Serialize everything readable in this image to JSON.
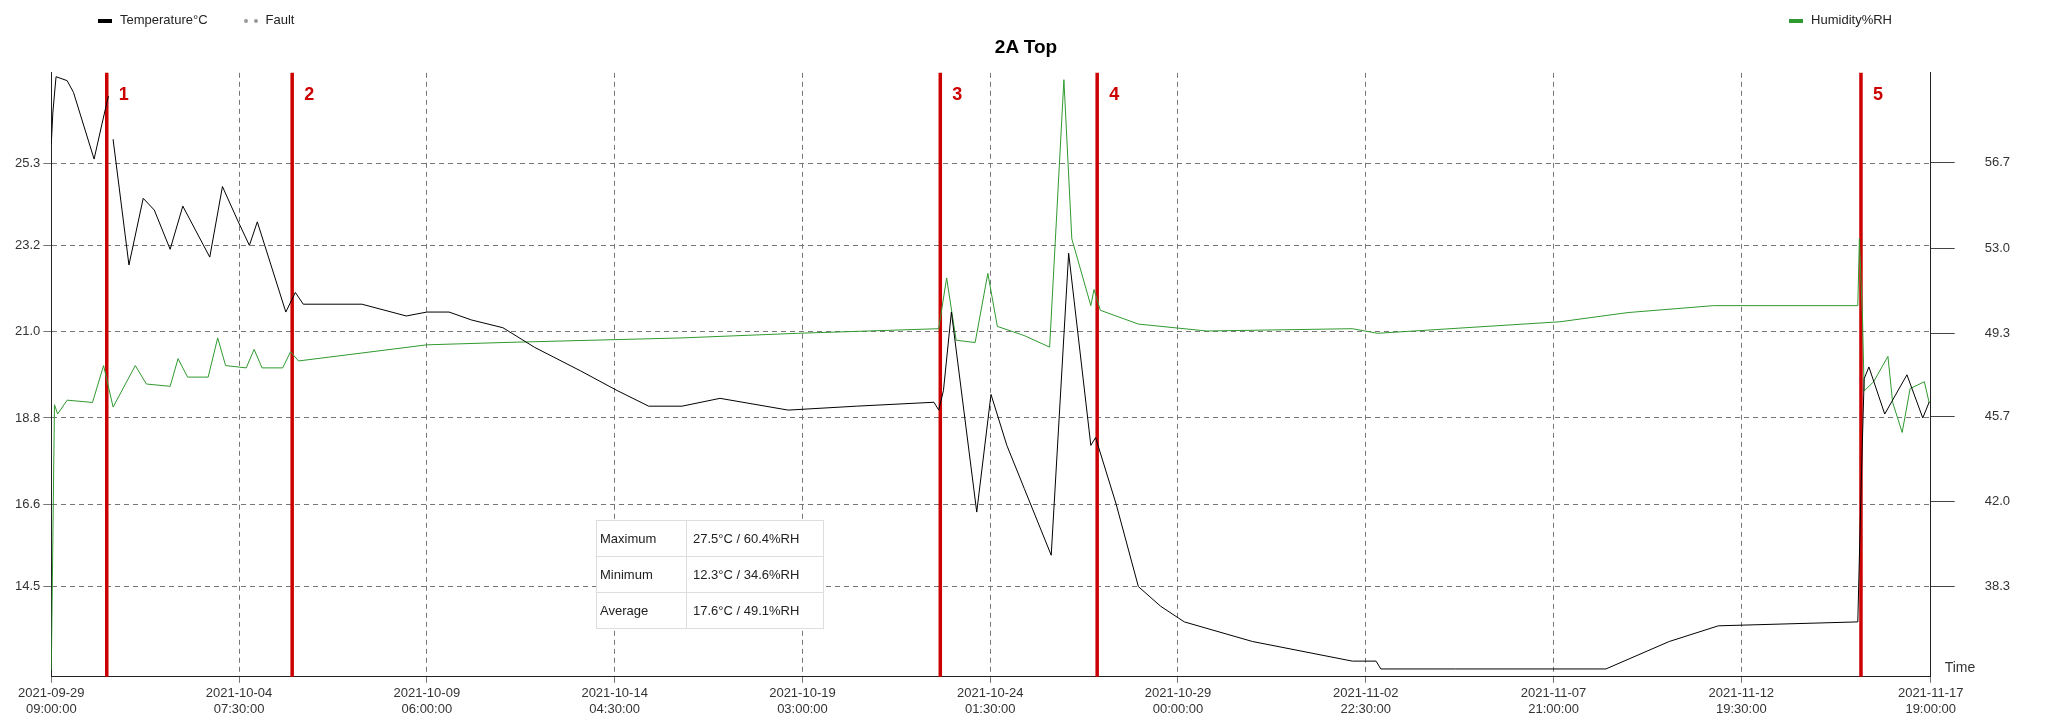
{
  "chart_data": {
    "type": "line",
    "title": "2A Top",
    "xlabel": "Time",
    "legend": "top",
    "grid": true,
    "line_style": "solid",
    "xlim": [
      "2021-09-29T09:00",
      "2021-11-17T19:00"
    ],
    "xticks": [
      {
        "value": "2021-09-29T09:00",
        "label": "2021-09-29\n09:00:00"
      },
      {
        "value": "2021-10-04T07:30",
        "label": "2021-10-04\n07:30:00"
      },
      {
        "value": "2021-10-09T06:00",
        "label": "2021-10-09\n06:00:00"
      },
      {
        "value": "2021-10-14T04:30",
        "label": "2021-10-14\n04:30:00"
      },
      {
        "value": "2021-10-19T03:00",
        "label": "2021-10-19\n03:00:00"
      },
      {
        "value": "2021-10-24T01:30",
        "label": "2021-10-24\n01:30:00"
      },
      {
        "value": "2021-10-29T00:00",
        "label": "2021-10-29\n00:00:00"
      },
      {
        "value": "2021-11-02T22:30",
        "label": "2021-11-02\n22:30:00"
      },
      {
        "value": "2021-11-07T21:00",
        "label": "2021-11-07\n21:00:00"
      },
      {
        "value": "2021-11-12T19:30",
        "label": "2021-11-12\n19:30:00"
      },
      {
        "value": "2021-11-17T19:00",
        "label": "2021-11-17\n19:00:00"
      }
    ],
    "ylim": [
      12.2,
      27.6
    ],
    "yticks": [
      25.3,
      23.2,
      {
        "value": 21,
        "label": "21.0"
      },
      18.8,
      16.6,
      14.5
    ],
    "y2lim": [
      34.4,
      60.6
    ],
    "y2ticks": [
      56.7,
      {
        "value": 53,
        "label": "53.0"
      },
      49.3,
      45.7,
      {
        "value": 42,
        "label": "42.0"
      },
      38.3
    ],
    "ref_lines": [
      {
        "axis": "x",
        "value": "2021-09-30T20:00",
        "label": "1",
        "color": "#cc0000"
      },
      {
        "axis": "x",
        "value": "2021-10-05T17:00",
        "label": "2",
        "color": "#cc0000"
      },
      {
        "axis": "x",
        "value": "2021-10-22T18:00",
        "label": "3",
        "color": "#cc0000"
      },
      {
        "axis": "x",
        "value": "2021-10-26T21:00",
        "label": "4",
        "color": "#cc0000"
      },
      {
        "axis": "x",
        "value": "2021-11-15T23:00",
        "label": "5",
        "color": "#cc0000"
      }
    ],
    "annotations": [
      "Maximum",
      "27.5°C / 60.4%RH",
      "Minimum",
      "12.3°C / 34.6%RH",
      "Average",
      "17.6°C / 49.1%RH"
    ],
    "series": [
      {
        "name": "Temperature°C",
        "color": "#000000",
        "x": [
          "2021-09-29T09:00",
          "2021-09-29T10:00",
          "2021-09-29T12:00",
          "2021-09-29T19:00",
          "2021-09-29T23:00",
          "2021-09-30T12:00",
          "2021-09-30T17:00",
          "2021-09-30T21:00",
          "2021-09-30T23:00",
          "2021-10-01T00:00",
          "2021-10-01T10:00",
          "2021-10-01T19:00",
          "2021-10-02T02:00",
          "2021-10-02T12:00",
          "2021-10-02T20:00",
          "2021-10-03T13:00",
          "2021-10-03T21:00",
          "2021-10-04T07:00",
          "2021-10-04T14:00",
          "2021-10-04T19:00",
          "2021-10-05T13:00",
          "2021-10-05T19:00",
          "2021-10-06T00:00",
          "2021-10-07T13:00",
          "2021-10-08T17:00",
          "2021-10-09T06:00",
          "2021-10-09T20:00",
          "2021-10-10T10:00",
          "2021-10-11T06:00",
          "2021-10-12T02:00",
          "2021-10-13T07:00",
          "2021-10-14T06:00",
          "2021-10-15T02:00",
          "2021-10-15T23:00",
          "2021-10-16T23:00",
          "2021-10-18T18:00",
          "2021-10-20T13:00",
          "2021-10-22T14:00",
          "2021-10-22T17:00",
          "2021-10-22T20:00",
          "2021-10-23T01:00",
          "2021-10-23T17:00",
          "2021-10-24T02:00",
          "2021-10-24T12:00",
          "2021-10-24T23:00",
          "2021-10-25T16:00",
          "2021-10-26T03:00",
          "2021-10-26T17:00",
          "2021-10-26T20:00",
          "2021-10-27T09:00",
          "2021-10-27T23:00",
          "2021-10-28T13:00",
          "2021-10-29T04:00",
          "2021-10-30T23:00",
          "2021-11-02T14:00",
          "2021-11-03T05:00",
          "2021-11-03T08:00",
          "2021-11-05T07:00",
          "2021-11-05T10:00",
          "2021-11-09T06:00",
          "2021-11-10T22:00",
          "2021-11-12T05:00",
          "2021-11-15T21:00",
          "2021-11-15T23:00",
          "2021-11-16T01:00",
          "2021-11-16T04:00",
          "2021-11-16T14:00",
          "2021-11-17T04:00",
          "2021-11-17T14:00",
          "2021-11-17T18:00"
        ],
        "values": [
          25.8,
          26.6,
          27.5,
          27.4,
          27.1,
          25.4,
          26.3,
          27.0,
          null,
          25.9,
          22.7,
          24.4,
          24.1,
          23.1,
          24.2,
          22.9,
          24.7,
          23.8,
          23.2,
          23.8,
          21.5,
          22.0,
          21.7,
          21.7,
          21.4,
          21.5,
          21.5,
          21.3,
          21.1,
          20.6,
          20.0,
          19.5,
          19.1,
          19.1,
          19.3,
          19.0,
          19.1,
          19.2,
          19.0,
          19.5,
          21.5,
          16.4,
          19.4,
          18.1,
          17.0,
          15.3,
          23.0,
          18.1,
          18.3,
          16.6,
          14.5,
          14.0,
          13.6,
          13.1,
          12.6,
          12.6,
          12.4,
          12.4,
          12.4,
          12.4,
          13.1,
          13.5,
          13.6,
          16.9,
          19.8,
          20.1,
          18.9,
          19.9,
          18.8,
          19.2
        ]
      },
      {
        "name": "Fault",
        "color": "#999999",
        "line_style": "dotted"
      },
      {
        "name": "Humidity%RH",
        "color": "#2f9a2f",
        "axis": "y2",
        "x": [
          "2021-09-29T09:00",
          "2021-09-29T11:00",
          "2021-09-29T13:00",
          "2021-09-29T19:00",
          "2021-09-30T11:00",
          "2021-09-30T18:00",
          "2021-10-01T00:00",
          "2021-10-01T14:00",
          "2021-10-01T21:00",
          "2021-10-02T12:00",
          "2021-10-02T17:00",
          "2021-10-02T23:00",
          "2021-10-03T12:00",
          "2021-10-03T18:00",
          "2021-10-03T23:00",
          "2021-10-04T12:00",
          "2021-10-04T17:00",
          "2021-10-04T22:00",
          "2021-10-05T11:00",
          "2021-10-05T16:00",
          "2021-10-05T21:00",
          "2021-10-09T06:00",
          "2021-10-11T06:00",
          "2021-10-15T23:00",
          "2021-10-19T00:00",
          "2021-10-22T17:00",
          "2021-10-22T22:00",
          "2021-10-23T04:00",
          "2021-10-23T16:00",
          "2021-10-24T00:00",
          "2021-10-24T06:00",
          "2021-10-24T23:00",
          "2021-10-25T15:00",
          "2021-10-26T00:00",
          "2021-10-26T05:00",
          "2021-10-26T17:00",
          "2021-10-26T19:00",
          "2021-10-26T23:00",
          "2021-10-27T23:00",
          "2021-10-29T18:00",
          "2021-11-02T14:00",
          "2021-11-03T06:00",
          "2021-11-08T01:00",
          "2021-11-09T20:00",
          "2021-11-12T02:00",
          "2021-11-15T21:00",
          "2021-11-15T22:00",
          "2021-11-16T00:00",
          "2021-11-16T01:00",
          "2021-11-16T07:00",
          "2021-11-16T16:00",
          "2021-11-16T19:00",
          "2021-11-17T01:00",
          "2021-11-17T06:00",
          "2021-11-17T15:00",
          "2021-11-17T18:00"
        ],
        "values": [
          34.7,
          46.2,
          45.8,
          46.4,
          46.3,
          47.9,
          46.1,
          47.9,
          47.1,
          47.0,
          48.2,
          47.4,
          47.4,
          49.1,
          47.9,
          47.8,
          48.6,
          47.8,
          47.8,
          48.5,
          48.1,
          48.8,
          48.9,
          49.1,
          49.3,
          49.5,
          51.7,
          49.0,
          48.9,
          51.9,
          49.6,
          49.2,
          48.7,
          60.3,
          53.4,
          50.5,
          51.2,
          50.3,
          49.7,
          49.4,
          49.5,
          49.3,
          49.8,
          50.2,
          50.5,
          50.5,
          53.4,
          49.9,
          46.8,
          47.2,
          48.3,
          46.3,
          45.0,
          46.9,
          47.2,
          46.3
        ]
      }
    ]
  }
}
